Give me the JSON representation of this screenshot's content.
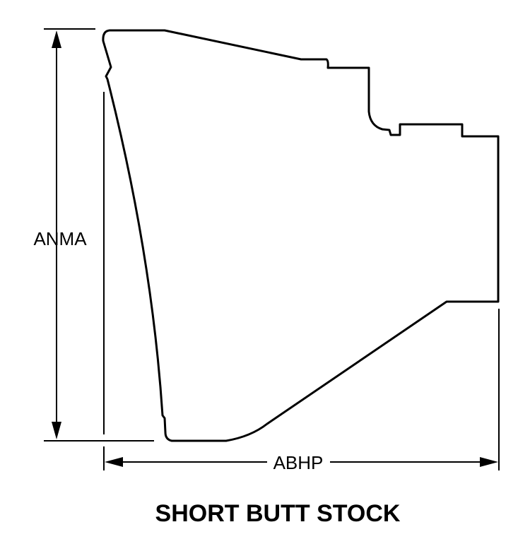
{
  "diagram": {
    "title": "SHORT BUTT STOCK",
    "dimensions": {
      "height_label": "ANMA",
      "width_label": "ABHP"
    },
    "line_color": "#000000",
    "background_color": "#ffffff"
  }
}
